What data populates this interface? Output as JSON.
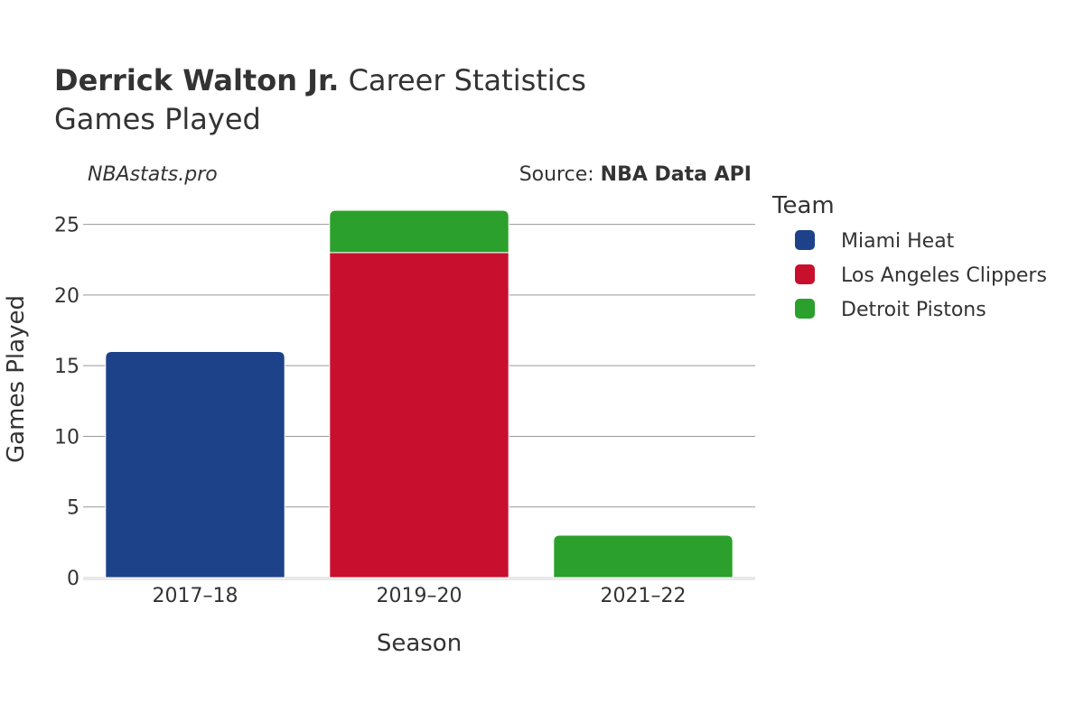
{
  "header": {
    "player_name": "Derrick Walton Jr.",
    "title_suffix": " Career Statistics",
    "subtitle": "Games Played"
  },
  "watermark": "NBAstats.pro",
  "source": {
    "label": "Source: ",
    "name": "NBA Data API"
  },
  "legend": {
    "title": "Team",
    "placement": "right"
  },
  "colors": {
    "Miami Heat": "#1d428a",
    "Los Angeles Clippers": "#c8102e",
    "Detroit Pistons": "#2ca02c",
    "grid": "#999999",
    "text": "#333333"
  },
  "chart_data": {
    "type": "bar",
    "stacked": true,
    "xlabel": "Season",
    "ylabel": "Games Played",
    "categories": [
      "2017–18",
      "2019–20",
      "2021–22"
    ],
    "ylim": [
      0,
      26.7
    ],
    "yticks": [
      0,
      5,
      10,
      15,
      20,
      25
    ],
    "grid": true,
    "series": [
      {
        "name": "Miami Heat",
        "values": [
          16,
          0,
          0
        ]
      },
      {
        "name": "Los Angeles Clippers",
        "values": [
          0,
          23,
          0
        ]
      },
      {
        "name": "Detroit Pistons",
        "values": [
          0,
          3,
          3
        ]
      }
    ]
  }
}
